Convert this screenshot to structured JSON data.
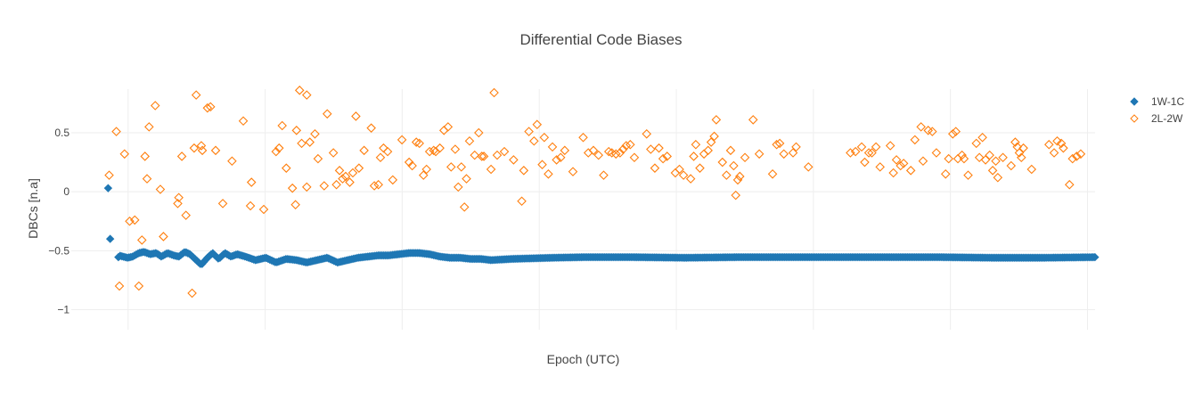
{
  "chart_data": {
    "type": "scatter",
    "title": "Differential Code Biases",
    "xlabel": "Epoch (UTC)",
    "ylabel": "DBCs [n.a]",
    "ylim": [
      -1.17,
      0.87
    ],
    "xlim": [
      0,
      1
    ],
    "yticks": [
      {
        "value": 0.5,
        "label": "0.5"
      },
      {
        "value": 0,
        "label": "0"
      },
      {
        "value": -0.5,
        "label": "−0.5"
      },
      {
        "value": -1,
        "label": "−1"
      }
    ],
    "xgrid": [
      0.0555,
      0.1894,
      0.3232,
      0.4571,
      0.591,
      0.7249,
      0.8587,
      0.9926
    ],
    "grid": true,
    "legend_position": "top-right",
    "series": [
      {
        "name": "1W-1C",
        "color": "#1f77b4",
        "marker": "diamond",
        "anchors": [
          [
            0.046,
            -0.54
          ],
          [
            0.055,
            -0.56
          ],
          [
            0.06,
            -0.55
          ],
          [
            0.066,
            -0.52
          ],
          [
            0.071,
            -0.51
          ],
          [
            0.077,
            -0.53
          ],
          [
            0.083,
            -0.52
          ],
          [
            0.088,
            -0.55
          ],
          [
            0.094,
            -0.52
          ],
          [
            0.1,
            -0.54
          ],
          [
            0.105,
            -0.55
          ],
          [
            0.111,
            -0.51
          ],
          [
            0.116,
            -0.53
          ],
          [
            0.122,
            -0.58
          ],
          [
            0.127,
            -0.62
          ],
          [
            0.133,
            -0.56
          ],
          [
            0.138,
            -0.52
          ],
          [
            0.144,
            -0.57
          ],
          [
            0.15,
            -0.52
          ],
          [
            0.156,
            -0.55
          ],
          [
            0.162,
            -0.53
          ],
          [
            0.17,
            -0.55
          ],
          [
            0.18,
            -0.58
          ],
          [
            0.19,
            -0.56
          ],
          [
            0.2,
            -0.6
          ],
          [
            0.21,
            -0.57
          ],
          [
            0.22,
            -0.58
          ],
          [
            0.23,
            -0.6
          ],
          [
            0.24,
            -0.58
          ],
          [
            0.25,
            -0.56
          ],
          [
            0.26,
            -0.6
          ],
          [
            0.27,
            -0.58
          ],
          [
            0.28,
            -0.56
          ],
          [
            0.29,
            -0.55
          ],
          [
            0.3,
            -0.54
          ],
          [
            0.31,
            -0.54
          ],
          [
            0.32,
            -0.53
          ],
          [
            0.33,
            -0.52
          ],
          [
            0.34,
            -0.52
          ],
          [
            0.35,
            -0.53
          ],
          [
            0.36,
            -0.55
          ],
          [
            0.37,
            -0.56
          ],
          [
            0.38,
            -0.56
          ],
          [
            0.39,
            -0.57
          ],
          [
            0.4,
            -0.57
          ],
          [
            0.41,
            -0.58
          ],
          [
            0.43,
            -0.57
          ],
          [
            0.45,
            -0.565
          ],
          [
            0.47,
            -0.56
          ],
          [
            0.5,
            -0.555
          ],
          [
            0.55,
            -0.555
          ],
          [
            0.6,
            -0.56
          ],
          [
            0.65,
            -0.555
          ],
          [
            0.7,
            -0.555
          ],
          [
            0.75,
            -0.555
          ],
          [
            0.8,
            -0.555
          ],
          [
            0.85,
            -0.555
          ],
          [
            0.9,
            -0.56
          ],
          [
            0.95,
            -0.56
          ],
          [
            1.0,
            -0.555
          ]
        ],
        "points": [
          [
            0.036,
            0.03
          ],
          [
            0.038,
            -0.4
          ]
        ]
      },
      {
        "name": "2L-2W",
        "color": "#ff7f0e",
        "marker": "diamond-open",
        "points": [
          [
            0.037,
            0.14
          ],
          [
            0.044,
            0.51
          ],
          [
            0.047,
            -0.8
          ],
          [
            0.052,
            0.32
          ],
          [
            0.057,
            -0.25
          ],
          [
            0.062,
            -0.24
          ],
          [
            0.066,
            -0.8
          ],
          [
            0.069,
            -0.41
          ],
          [
            0.072,
            0.3
          ],
          [
            0.074,
            0.11
          ],
          [
            0.076,
            0.55
          ],
          [
            0.082,
            0.73
          ],
          [
            0.087,
            0.02
          ],
          [
            0.09,
            -0.38
          ],
          [
            0.104,
            -0.1
          ],
          [
            0.105,
            -0.05
          ],
          [
            0.108,
            0.3
          ],
          [
            0.112,
            -0.2
          ],
          [
            0.118,
            -0.86
          ],
          [
            0.12,
            0.37
          ],
          [
            0.122,
            0.82
          ],
          [
            0.127,
            0.39
          ],
          [
            0.128,
            0.35
          ],
          [
            0.133,
            0.71
          ],
          [
            0.136,
            0.72
          ],
          [
            0.141,
            0.35
          ],
          [
            0.148,
            -0.1
          ],
          [
            0.157,
            0.26
          ],
          [
            0.168,
            0.6
          ],
          [
            0.176,
            0.08
          ],
          [
            0.175,
            -0.12
          ],
          [
            0.188,
            -0.15
          ],
          [
            0.2,
            0.34
          ],
          [
            0.203,
            0.37
          ],
          [
            0.206,
            0.56
          ],
          [
            0.21,
            0.2
          ],
          [
            0.216,
            0.03
          ],
          [
            0.219,
            -0.11
          ],
          [
            0.22,
            0.52
          ],
          [
            0.223,
            0.86
          ],
          [
            0.225,
            0.41
          ],
          [
            0.23,
            0.04
          ],
          [
            0.23,
            0.82
          ],
          [
            0.233,
            0.42
          ],
          [
            0.238,
            0.49
          ],
          [
            0.241,
            0.28
          ],
          [
            0.247,
            0.05
          ],
          [
            0.25,
            0.66
          ],
          [
            0.256,
            0.33
          ],
          [
            0.259,
            0.06
          ],
          [
            0.262,
            0.18
          ],
          [
            0.265,
            0.11
          ],
          [
            0.268,
            0.13
          ],
          [
            0.272,
            0.08
          ],
          [
            0.275,
            0.16
          ],
          [
            0.278,
            0.64
          ],
          [
            0.281,
            0.2
          ],
          [
            0.286,
            0.35
          ],
          [
            0.293,
            0.54
          ],
          [
            0.296,
            0.05
          ],
          [
            0.3,
            0.06
          ],
          [
            0.302,
            0.29
          ],
          [
            0.305,
            0.37
          ],
          [
            0.309,
            0.34
          ],
          [
            0.314,
            0.1
          ],
          [
            0.323,
            0.44
          ],
          [
            0.33,
            0.25
          ],
          [
            0.333,
            0.22
          ],
          [
            0.337,
            0.42
          ],
          [
            0.34,
            0.41
          ],
          [
            0.344,
            0.14
          ],
          [
            0.347,
            0.19
          ],
          [
            0.35,
            0.34
          ],
          [
            0.354,
            0.35
          ],
          [
            0.356,
            0.34
          ],
          [
            0.36,
            0.37
          ],
          [
            0.364,
            0.52
          ],
          [
            0.368,
            0.55
          ],
          [
            0.371,
            0.21
          ],
          [
            0.375,
            0.36
          ],
          [
            0.378,
            0.04
          ],
          [
            0.381,
            0.21
          ],
          [
            0.384,
            -0.13
          ],
          [
            0.386,
            0.11
          ],
          [
            0.389,
            0.43
          ],
          [
            0.394,
            0.31
          ],
          [
            0.398,
            0.5
          ],
          [
            0.401,
            0.3
          ],
          [
            0.403,
            0.3
          ],
          [
            0.41,
            0.19
          ],
          [
            0.413,
            0.84
          ],
          [
            0.416,
            0.31
          ],
          [
            0.423,
            0.34
          ],
          [
            0.432,
            0.27
          ],
          [
            0.44,
            -0.08
          ],
          [
            0.442,
            0.18
          ],
          [
            0.447,
            0.51
          ],
          [
            0.452,
            0.43
          ],
          [
            0.455,
            0.57
          ],
          [
            0.46,
            0.23
          ],
          [
            0.462,
            0.46
          ],
          [
            0.466,
            0.15
          ],
          [
            0.47,
            0.38
          ],
          [
            0.474,
            0.27
          ],
          [
            0.478,
            0.29
          ],
          [
            0.482,
            0.35
          ],
          [
            0.49,
            0.17
          ],
          [
            0.5,
            0.46
          ],
          [
            0.505,
            0.33
          ],
          [
            0.51,
            0.35
          ],
          [
            0.515,
            0.31
          ],
          [
            0.52,
            0.14
          ],
          [
            0.525,
            0.34
          ],
          [
            0.528,
            0.33
          ],
          [
            0.532,
            0.32
          ],
          [
            0.536,
            0.33
          ],
          [
            0.539,
            0.36
          ],
          [
            0.542,
            0.39
          ],
          [
            0.546,
            0.4
          ],
          [
            0.55,
            0.29
          ],
          [
            0.562,
            0.49
          ],
          [
            0.566,
            0.36
          ],
          [
            0.57,
            0.2
          ],
          [
            0.574,
            0.37
          ],
          [
            0.578,
            0.28
          ],
          [
            0.582,
            0.3
          ],
          [
            0.59,
            0.16
          ],
          [
            0.594,
            0.19
          ],
          [
            0.598,
            0.14
          ],
          [
            0.605,
            0.11
          ],
          [
            0.608,
            0.3
          ],
          [
            0.61,
            0.4
          ],
          [
            0.614,
            0.2
          ],
          [
            0.618,
            0.32
          ],
          [
            0.622,
            0.35
          ],
          [
            0.625,
            0.42
          ],
          [
            0.628,
            0.47
          ],
          [
            0.63,
            0.61
          ],
          [
            0.636,
            0.25
          ],
          [
            0.64,
            0.14
          ],
          [
            0.644,
            0.35
          ],
          [
            0.647,
            0.22
          ],
          [
            0.649,
            -0.03
          ],
          [
            0.651,
            0.1
          ],
          [
            0.653,
            0.13
          ],
          [
            0.658,
            0.29
          ],
          [
            0.666,
            0.61
          ],
          [
            0.672,
            0.32
          ],
          [
            0.685,
            0.15
          ],
          [
            0.689,
            0.4
          ],
          [
            0.692,
            0.41
          ],
          [
            0.696,
            0.32
          ],
          [
            0.705,
            0.33
          ],
          [
            0.708,
            0.38
          ],
          [
            0.72,
            0.21
          ],
          [
            0.761,
            0.33
          ],
          [
            0.766,
            0.34
          ],
          [
            0.772,
            0.38
          ],
          [
            0.775,
            0.25
          ],
          [
            0.779,
            0.33
          ],
          [
            0.782,
            0.33
          ],
          [
            0.786,
            0.38
          ],
          [
            0.79,
            0.21
          ],
          [
            0.8,
            0.39
          ],
          [
            0.803,
            0.16
          ],
          [
            0.806,
            0.27
          ],
          [
            0.81,
            0.22
          ],
          [
            0.813,
            0.24
          ],
          [
            0.82,
            0.18
          ],
          [
            0.824,
            0.44
          ],
          [
            0.83,
            0.55
          ],
          [
            0.832,
            0.26
          ],
          [
            0.837,
            0.52
          ],
          [
            0.841,
            0.51
          ],
          [
            0.845,
            0.33
          ],
          [
            0.854,
            0.15
          ],
          [
            0.857,
            0.28
          ],
          [
            0.861,
            0.49
          ],
          [
            0.864,
            0.51
          ],
          [
            0.866,
            0.28
          ],
          [
            0.87,
            0.31
          ],
          [
            0.872,
            0.28
          ],
          [
            0.876,
            0.14
          ],
          [
            0.884,
            0.41
          ],
          [
            0.887,
            0.29
          ],
          [
            0.89,
            0.46
          ],
          [
            0.893,
            0.27
          ],
          [
            0.897,
            0.31
          ],
          [
            0.9,
            0.18
          ],
          [
            0.903,
            0.26
          ],
          [
            0.905,
            0.12
          ],
          [
            0.91,
            0.29
          ],
          [
            0.918,
            0.22
          ],
          [
            0.922,
            0.42
          ],
          [
            0.924,
            0.38
          ],
          [
            0.926,
            0.33
          ],
          [
            0.928,
            0.29
          ],
          [
            0.93,
            0.37
          ],
          [
            0.938,
            0.19
          ],
          [
            0.955,
            0.4
          ],
          [
            0.96,
            0.33
          ],
          [
            0.963,
            0.43
          ],
          [
            0.967,
            0.41
          ],
          [
            0.969,
            0.37
          ],
          [
            0.975,
            0.06
          ],
          [
            0.978,
            0.28
          ],
          [
            0.982,
            0.3
          ],
          [
            0.986,
            0.32
          ]
        ]
      }
    ]
  }
}
